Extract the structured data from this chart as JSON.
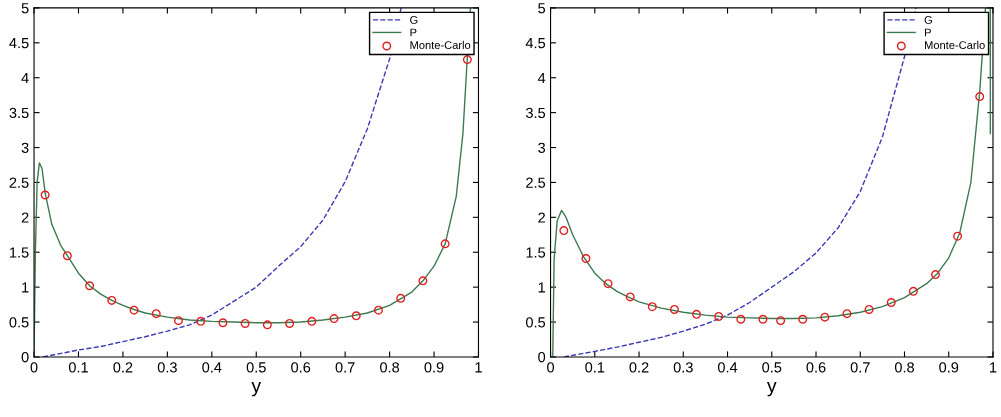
{
  "chart_data": [
    {
      "type": "line",
      "xlabel": "y",
      "xlim": [
        0,
        1
      ],
      "ylim": [
        0,
        5
      ],
      "xticks": [
        0,
        0.1,
        0.2,
        0.3,
        0.4,
        0.5,
        0.6,
        0.7,
        0.8,
        0.9,
        1
      ],
      "yticks": [
        0,
        0.5,
        1,
        1.5,
        2,
        2.5,
        3,
        3.5,
        4,
        4.5,
        5
      ],
      "grid": false,
      "legend": "top right",
      "series": [
        {
          "name": "G",
          "type": "line",
          "line_style": "dashed",
          "color": "#3a3ab4",
          "x": [
            0.02,
            0.1,
            0.15,
            0.2,
            0.25,
            0.3,
            0.35,
            0.4,
            0.45,
            0.5,
            0.55,
            0.6,
            0.65,
            0.7,
            0.75,
            0.8,
            0.826
          ],
          "values": [
            0,
            0.1,
            0.15,
            0.22,
            0.29,
            0.37,
            0.46,
            0.6,
            0.8,
            1.0,
            1.3,
            1.58,
            1.96,
            2.51,
            3.27,
            4.27,
            5
          ]
        },
        {
          "name": "P",
          "type": "line",
          "line_style": "solid",
          "color": "#3c7a50",
          "x": [
            0,
            0.003,
            0.007,
            0.012,
            0.018,
            0.025,
            0.04,
            0.06,
            0.075,
            0.1,
            0.125,
            0.15,
            0.175,
            0.2,
            0.225,
            0.25,
            0.3,
            0.35,
            0.4,
            0.45,
            0.5,
            0.55,
            0.6,
            0.65,
            0.7,
            0.75,
            0.8,
            0.85,
            0.875,
            0.9,
            0.925,
            0.95,
            0.965,
            0.975,
            0.982
          ],
          "values": [
            0,
            1.5,
            2.5,
            2.78,
            2.7,
            2.35,
            1.9,
            1.6,
            1.45,
            1.2,
            1.02,
            0.9,
            0.81,
            0.74,
            0.68,
            0.63,
            0.57,
            0.53,
            0.51,
            0.5,
            0.49,
            0.49,
            0.5,
            0.53,
            0.57,
            0.63,
            0.74,
            0.93,
            1.09,
            1.3,
            1.62,
            2.3,
            3.2,
            4.3,
            5
          ]
        },
        {
          "name": "Monte-Carlo",
          "type": "scatter",
          "marker": "circle",
          "color": "#e02020",
          "x": [
            0.025,
            0.075,
            0.125,
            0.175,
            0.225,
            0.275,
            0.325,
            0.375,
            0.425,
            0.475,
            0.525,
            0.575,
            0.625,
            0.675,
            0.725,
            0.775,
            0.825,
            0.875,
            0.925,
            0.975
          ],
          "values": [
            2.32,
            1.45,
            1.02,
            0.81,
            0.67,
            0.62,
            0.52,
            0.51,
            0.49,
            0.48,
            0.46,
            0.48,
            0.51,
            0.55,
            0.59,
            0.67,
            0.84,
            1.09,
            1.62,
            4.26
          ]
        }
      ]
    },
    {
      "type": "line",
      "xlabel": "y",
      "xlim": [
        0,
        1
      ],
      "ylim": [
        0,
        5
      ],
      "xticks": [
        0,
        0.1,
        0.2,
        0.3,
        0.4,
        0.5,
        0.6,
        0.7,
        0.8,
        0.9,
        1
      ],
      "yticks": [
        0,
        0.5,
        1,
        1.5,
        2,
        2.5,
        3,
        3.5,
        4,
        4.5,
        5
      ],
      "grid": false,
      "legend": "top right",
      "series": [
        {
          "name": "G",
          "type": "line",
          "line_style": "dashed",
          "color": "#3a3ab4",
          "x": [
            0.03,
            0.1,
            0.15,
            0.2,
            0.25,
            0.3,
            0.35,
            0.4,
            0.45,
            0.5,
            0.55,
            0.6,
            0.65,
            0.7,
            0.75,
            0.8,
            0.826
          ],
          "values": [
            0,
            0.08,
            0.14,
            0.21,
            0.28,
            0.37,
            0.47,
            0.6,
            0.78,
            1.0,
            1.22,
            1.49,
            1.85,
            2.37,
            3.15,
            4.3,
            5
          ]
        },
        {
          "name": "P",
          "type": "line",
          "line_style": "solid",
          "color": "#3c7a50",
          "x": [
            0.005,
            0.008,
            0.015,
            0.025,
            0.035,
            0.05,
            0.075,
            0.1,
            0.125,
            0.15,
            0.175,
            0.2,
            0.25,
            0.3,
            0.35,
            0.4,
            0.45,
            0.5,
            0.55,
            0.6,
            0.65,
            0.7,
            0.75,
            0.8,
            0.85,
            0.875,
            0.9,
            0.925,
            0.95,
            0.97,
            0.983,
            0.994,
            0.994
          ],
          "values": [
            0,
            1.4,
            1.95,
            2.1,
            2.0,
            1.75,
            1.43,
            1.2,
            1.05,
            0.94,
            0.86,
            0.79,
            0.7,
            0.64,
            0.6,
            0.57,
            0.56,
            0.55,
            0.55,
            0.56,
            0.59,
            0.64,
            0.72,
            0.85,
            1.05,
            1.2,
            1.42,
            1.78,
            2.5,
            3.8,
            5,
            5,
            3.2
          ]
        },
        {
          "name": "Monte-Carlo",
          "type": "scatter",
          "marker": "circle",
          "color": "#e02020",
          "x": [
            0.03,
            0.08,
            0.13,
            0.18,
            0.23,
            0.28,
            0.33,
            0.38,
            0.43,
            0.48,
            0.52,
            0.57,
            0.62,
            0.67,
            0.72,
            0.77,
            0.82,
            0.87,
            0.92,
            0.97
          ],
          "values": [
            1.81,
            1.41,
            1.05,
            0.86,
            0.72,
            0.68,
            0.61,
            0.58,
            0.54,
            0.54,
            0.52,
            0.54,
            0.57,
            0.62,
            0.68,
            0.78,
            0.94,
            1.18,
            1.73,
            3.73
          ]
        }
      ]
    }
  ]
}
